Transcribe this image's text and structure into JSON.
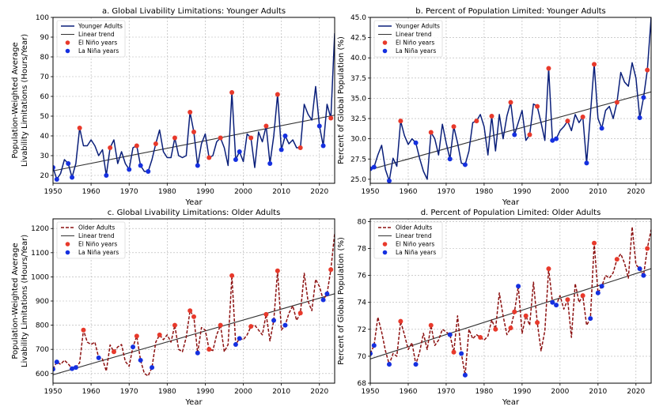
{
  "colors": {
    "young": "#0a1f7a",
    "old": "#8b1010",
    "trend": "#333333",
    "elnino": "#e8392b",
    "lanina": "#1530e0"
  },
  "years_x": {
    "min": 1950,
    "max": 2024,
    "ticks": [
      1950,
      1960,
      1970,
      1980,
      1990,
      2000,
      2010,
      2020
    ]
  },
  "chart_data": [
    {
      "id": "a",
      "type": "line",
      "title": "a. Global Livability Limitations: Younger Adults",
      "xlabel": "Year",
      "ylabel": [
        "Population-Weighted Average",
        "Livability Limitations (Hours/Year)"
      ],
      "ylim": [
        16,
        100
      ],
      "yticks": [
        20,
        30,
        40,
        50,
        60,
        70,
        80,
        90,
        100
      ],
      "series_name": "Younger Adults",
      "series_key": "young",
      "legend": [
        "Younger Adults",
        "Linear trend",
        "El Niño years",
        "La Niña years"
      ],
      "trend": [
        [
          1950,
          22.3
        ],
        [
          2024,
          50.5
        ]
      ],
      "x_start": 1950,
      "values": [
        24,
        18,
        21,
        28,
        26,
        19,
        26,
        44,
        35,
        35,
        38,
        35,
        30,
        33,
        20,
        34,
        38,
        26,
        32,
        26,
        23,
        34,
        35,
        25,
        22,
        22,
        28,
        36,
        43,
        32,
        29,
        29,
        39,
        30,
        29,
        30,
        52,
        42,
        25,
        36,
        41,
        29,
        30,
        37,
        39,
        34,
        25,
        62,
        28,
        32,
        27,
        41,
        39,
        24,
        42,
        37,
        45,
        26,
        40,
        61,
        33,
        40,
        36,
        38,
        34,
        34,
        56,
        51,
        48,
        65,
        45,
        35,
        56,
        49,
        92
      ],
      "elnino": [
        1957,
        1965,
        1972,
        1977,
        1982,
        1986,
        1987,
        1991,
        1994,
        1997,
        2002,
        2006,
        2009,
        2015,
        2023
      ],
      "lanina": [
        1950,
        1951,
        1954,
        1955,
        1964,
        1970,
        1973,
        1975,
        1988,
        1998,
        1999,
        2007,
        2010,
        2011,
        2020,
        2021
      ]
    },
    {
      "id": "b",
      "type": "line",
      "title": "b. Percent of Population Limited: Younger Adults",
      "xlabel": "Year",
      "ylabel": [
        "Percent of Global Population (%)"
      ],
      "ylim": [
        24.5,
        45
      ],
      "yticks": [
        25.0,
        27.5,
        30.0,
        32.5,
        35.0,
        37.5,
        40.0,
        42.5,
        45.0
      ],
      "series_name": "Younger Adults",
      "series_key": "young",
      "legend": [
        "Younger Adults",
        "Linear trend",
        "El Niño years",
        "La Niña years"
      ],
      "trend": [
        [
          1950,
          26.2
        ],
        [
          2024,
          35.8
        ]
      ],
      "x_start": 1950,
      "values": [
        26.3,
        26.5,
        28.0,
        29.2,
        26.2,
        24.8,
        27.6,
        26.6,
        32.2,
        30.4,
        29.3,
        30.0,
        29.5,
        27.6,
        26.0,
        25.0,
        30.8,
        30.0,
        28.0,
        31.8,
        29.5,
        27.5,
        31.5,
        29.5,
        27.0,
        26.8,
        28.5,
        32.0,
        32.2,
        33.0,
        31.5,
        28.0,
        32.8,
        28.5,
        33.0,
        30.0,
        32.8,
        34.5,
        30.5,
        32.0,
        33.5,
        29.8,
        30.5,
        34.3,
        34.0,
        32.0,
        29.8,
        38.7,
        29.8,
        30.0,
        31.0,
        31.5,
        32.2,
        31.0,
        33.0,
        32.0,
        32.7,
        27.0,
        33.0,
        39.2,
        32.5,
        31.3,
        33.5,
        34.0,
        32.5,
        34.5,
        38.2,
        37.0,
        36.5,
        39.4,
        37.5,
        32.6,
        35.1,
        38.5,
        45.0
      ],
      "elnino": [
        1958,
        1966,
        1972,
        1978,
        1982,
        1987,
        1992,
        1994,
        1997,
        2002,
        2006,
        2009,
        2015,
        2023
      ],
      "lanina": [
        1950,
        1951,
        1955,
        1962,
        1971,
        1975,
        1988,
        1998,
        1999,
        2007,
        2011,
        2021,
        2022
      ]
    },
    {
      "id": "c",
      "type": "line",
      "title": "c. Global Livability Limitations: Older Adults",
      "xlabel": "Year",
      "ylabel": [
        "Population-Weighted Average",
        "Livability Limitations (Hours/Year)"
      ],
      "ylim": [
        560,
        1240
      ],
      "yticks": [
        600,
        700,
        800,
        900,
        1000,
        1100,
        1200
      ],
      "series_name": "Older Adults",
      "series_key": "old",
      "legend": [
        "Older Adults",
        "Linear trend",
        "El Niño years",
        "La Niña years"
      ],
      "trend": [
        [
          1950,
          595
        ],
        [
          2024,
          930
        ]
      ],
      "x_start": 1950,
      "values": [
        618,
        648,
        638,
        655,
        640,
        620,
        625,
        645,
        780,
        730,
        720,
        730,
        665,
        660,
        610,
        718,
        690,
        710,
        720,
        650,
        630,
        710,
        755,
        655,
        600,
        590,
        625,
        730,
        760,
        740,
        760,
        730,
        800,
        700,
        690,
        750,
        860,
        835,
        685,
        790,
        780,
        700,
        695,
        760,
        800,
        690,
        720,
        1005,
        720,
        745,
        740,
        760,
        795,
        800,
        780,
        760,
        845,
        735,
        820,
        1025,
        780,
        800,
        850,
        880,
        820,
        850,
        1015,
        900,
        860,
        990,
        960,
        905,
        930,
        1030,
        1180
      ],
      "elnino": [
        1958,
        1966,
        1972,
        1978,
        1982,
        1986,
        1987,
        1991,
        1994,
        1997,
        2002,
        2006,
        2009,
        2015,
        2023
      ],
      "lanina": [
        1950,
        1951,
        1955,
        1956,
        1962,
        1971,
        1973,
        1976,
        1988,
        1998,
        1999,
        2008,
        2011,
        2021,
        2022
      ]
    },
    {
      "id": "d",
      "type": "line",
      "title": "d. Percent of Population Limited: Older Adults",
      "xlabel": "Year",
      "ylabel": [
        "Percent of Global Population (%)"
      ],
      "ylim": [
        68,
        80.2
      ],
      "yticks": [
        68,
        70,
        72,
        74,
        76,
        78,
        80
      ],
      "series_name": "Older Adults",
      "series_key": "old",
      "legend": [
        "Older Adults",
        "Linear trend",
        "El Niño years",
        "La Niña years"
      ],
      "trend": [
        [
          1950,
          69.8
        ],
        [
          2024,
          76.5
        ]
      ],
      "x_start": 1950,
      "values": [
        70.2,
        70.8,
        72.9,
        71.8,
        70.4,
        69.4,
        70.2,
        70.0,
        72.6,
        71.6,
        70.5,
        71.0,
        69.4,
        70.3,
        71.7,
        70.5,
        72.3,
        70.8,
        71.2,
        72.0,
        71.8,
        71.6,
        70.3,
        73.0,
        70.2,
        68.6,
        72.0,
        71.3,
        71.6,
        71.4,
        71.2,
        71.5,
        72.7,
        72.0,
        74.7,
        73.0,
        71.6,
        72.1,
        73.3,
        75.2,
        71.7,
        73.0,
        72.3,
        75.5,
        72.5,
        70.4,
        71.9,
        76.5,
        74.0,
        73.8,
        74.5,
        73.5,
        74.2,
        71.4,
        75.4,
        74.0,
        74.5,
        72.3,
        72.8,
        78.4,
        74.7,
        75.2,
        76.0,
        75.8,
        76.2,
        77.2,
        77.6,
        76.9,
        75.8,
        79.6,
        76.8,
        76.5,
        76.0,
        78.0,
        79.4
      ],
      "elnino": [
        1958,
        1966,
        1972,
        1979,
        1983,
        1987,
        1988,
        1991,
        1994,
        1997,
        2002,
        2006,
        2009,
        2015,
        2023
      ],
      "lanina": [
        1950,
        1951,
        1955,
        1962,
        1971,
        1974,
        1975,
        1989,
        1998,
        1999,
        2008,
        2010,
        2011,
        2021,
        2022
      ]
    }
  ]
}
